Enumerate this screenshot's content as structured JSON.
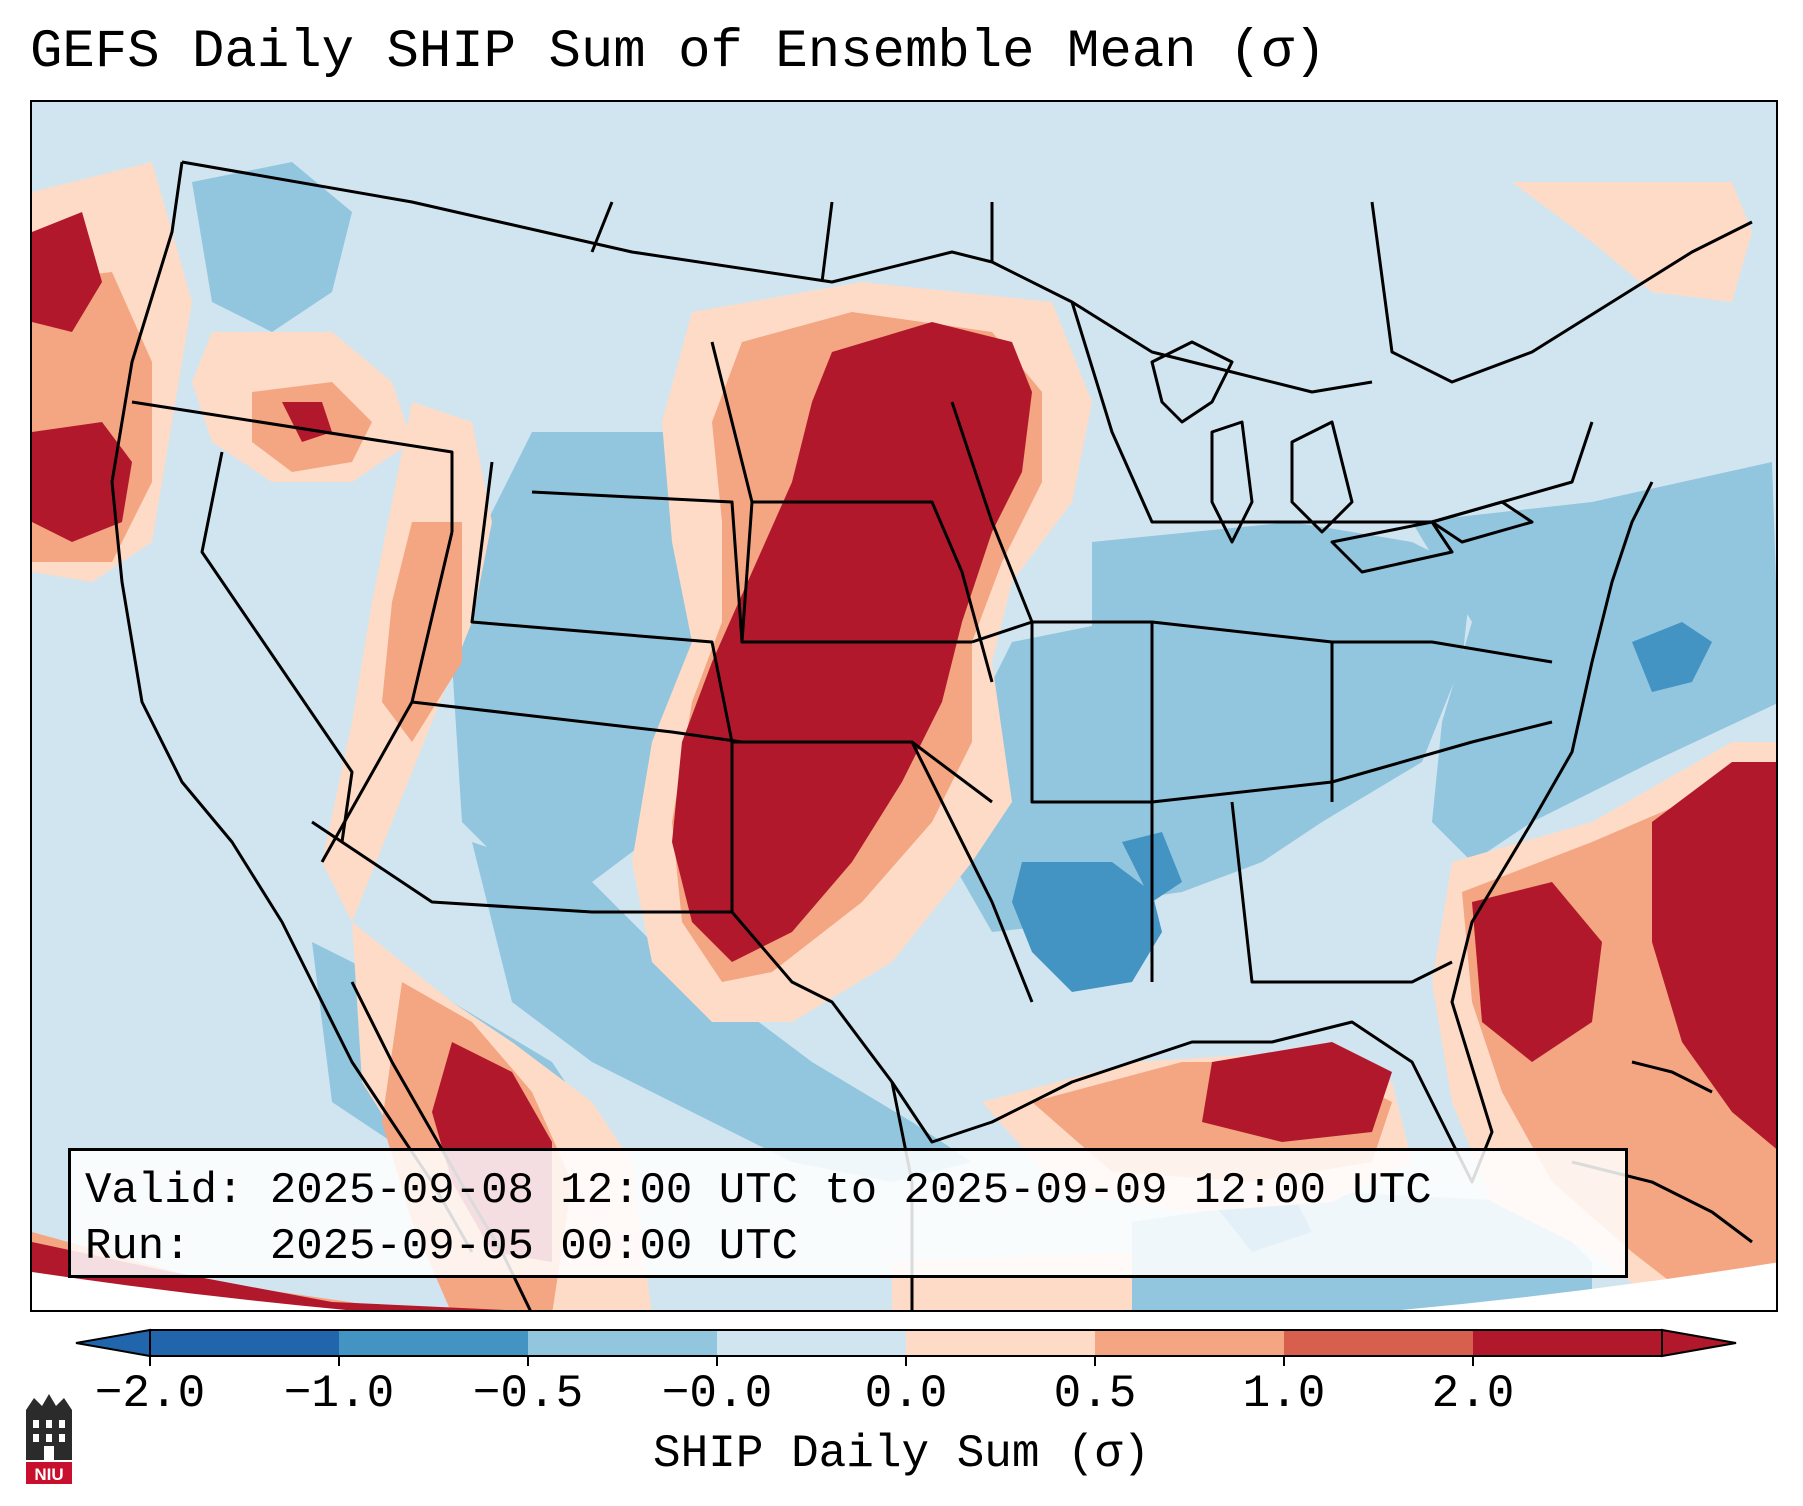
{
  "title": "GEFS Daily SHIP Sum of Ensemble Mean (σ)",
  "info": {
    "valid_label": "Valid:",
    "valid_value": "2025-09-08 12:00 UTC to 2025-09-09 12:00 UTC",
    "run_label": "Run:",
    "run_value": "2025-09-05 00:00 UTC"
  },
  "colorbar": {
    "label": "SHIP Daily Sum (σ)",
    "ticks": [
      "−2.0",
      "−1.0",
      "−0.5",
      "−0.0",
      "0.0",
      "0.5",
      "1.0",
      "2.0"
    ],
    "colors": [
      "#2166ac",
      "#4393c3",
      "#92c5de",
      "#d1e5f0",
      "#fddbc7",
      "#f4a582",
      "#d6604d",
      "#b2182b"
    ],
    "extend": "both"
  },
  "logo": {
    "text": "NIU",
    "color": "#c8102e"
  }
}
